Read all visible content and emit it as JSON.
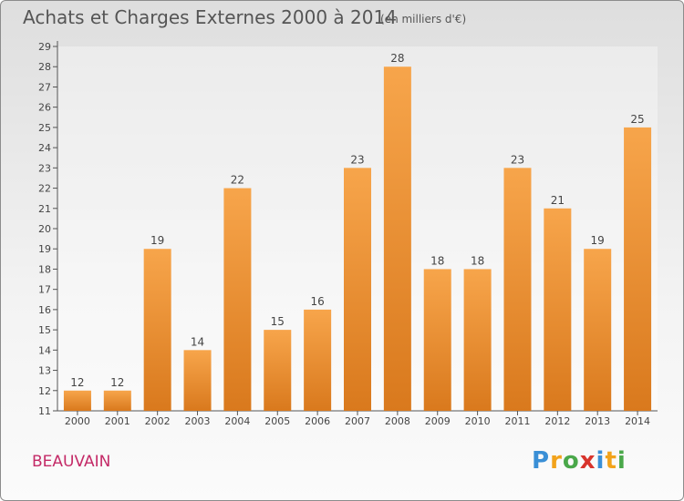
{
  "title": "Achats et Charges Externes 2000 à 2014",
  "subtitle": "(en milliers d'€)",
  "location": "BEAUVAIN",
  "logo": {
    "text": "Proxiti",
    "letters": [
      {
        "ch": "P",
        "color": "#3a8fd6"
      },
      {
        "ch": "r",
        "color": "#f2a31b"
      },
      {
        "ch": "o",
        "color": "#4aa84a"
      },
      {
        "ch": "x",
        "color": "#d8342c"
      },
      {
        "ch": "i",
        "color": "#3a8fd6"
      },
      {
        "ch": "t",
        "color": "#f2a31b"
      },
      {
        "ch": "i",
        "color": "#4aa84a"
      }
    ]
  },
  "colors": {
    "bar_top": "#f7a54b",
    "bar_bottom": "#d9791d",
    "title": "#555555",
    "location": "#c42a67"
  },
  "chart_data": {
    "type": "bar",
    "title": "Achats et Charges Externes 2000 à 2014",
    "subtitle": "(en milliers d'€)",
    "xlabel": "",
    "ylabel": "",
    "categories": [
      "2000",
      "2001",
      "2002",
      "2003",
      "2004",
      "2005",
      "2006",
      "2007",
      "2008",
      "2009",
      "2010",
      "2011",
      "2012",
      "2013",
      "2014"
    ],
    "values": [
      12,
      12,
      19,
      14,
      22,
      15,
      16,
      23,
      28,
      18,
      18,
      23,
      21,
      19,
      25
    ],
    "ylim": [
      11,
      29
    ],
    "yticks": [
      11,
      12,
      13,
      14,
      15,
      16,
      17,
      18,
      19,
      20,
      21,
      22,
      23,
      24,
      25,
      26,
      27,
      28,
      29
    ],
    "grid": false,
    "data_labels": true
  }
}
